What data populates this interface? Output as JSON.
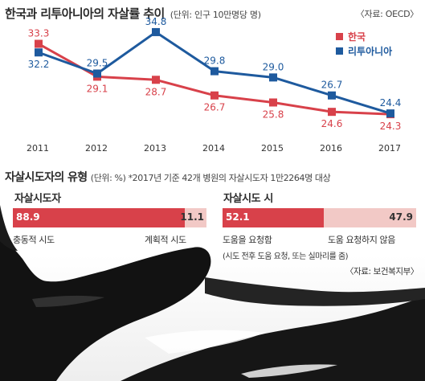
{
  "header": {
    "title": "한국과 리투아니아의 자살률 추이",
    "unit": "(단위: 인구 10만명당 명)",
    "source": "〈자료: OECD〉"
  },
  "chart_data": [
    {
      "type": "line",
      "title": "한국과 리투아니아의 자살률 추이",
      "x": [
        "2011",
        "2012",
        "2013",
        "2014",
        "2015",
        "2016",
        "2017"
      ],
      "series": [
        {
          "name": "한국",
          "color": "#d8414a",
          "values": [
            33.3,
            29.1,
            28.7,
            26.7,
            25.8,
            24.6,
            24.3
          ]
        },
        {
          "name": "리투아니아",
          "color": "#1e5a9e",
          "values": [
            32.2,
            29.5,
            34.8,
            29.8,
            29.0,
            26.7,
            24.4
          ]
        }
      ],
      "legend": "top-right",
      "grid": false
    },
    {
      "type": "bar",
      "orientation": "horizontal-stacked",
      "title": "자살시도자",
      "categories": [
        "충동적 시도",
        "계획적 시도"
      ],
      "values": [
        88.9,
        11.1
      ],
      "colors": [
        "#d8414a",
        "#f2c9c6"
      ]
    },
    {
      "type": "bar",
      "orientation": "horizontal-stacked",
      "title": "자살시도 시",
      "categories": [
        "도움을 요청함",
        "도움 요청하지 않음"
      ],
      "values": [
        52.1,
        47.9
      ],
      "colors": [
        "#d8414a",
        "#f2c9c6"
      ]
    }
  ],
  "section": {
    "title": "자살시도자의 유형",
    "note": "(단위: %) *2017년 기준 42개 병원의 자살시도자 1만2264명 대상"
  },
  "left_bar": {
    "title": "자살시도자",
    "value1": "88.9",
    "value2": "11.1",
    "label1": "충동적 시도",
    "label2": "계획적 시도"
  },
  "right_bar": {
    "title": "자살시도 시",
    "value1": "52.1",
    "value2": "47.9",
    "label1": "도움을 요청함",
    "label2": "도움 요청하지 않음",
    "note": "(시도 전후 도움 요청, 또는 실마리를 줌)"
  },
  "footer": {
    "source": "〈자료: 보건복지부〉"
  }
}
